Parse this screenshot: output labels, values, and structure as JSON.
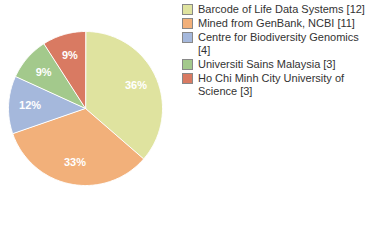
{
  "chart_data": {
    "type": "pie",
    "categories": [
      "Barcode of Life Data Systems [12]",
      "Mined from GenBank, NCBI [11]",
      "Centre for Biodiversity Genomics [4]",
      "Universiti Sains Malaysia [3]",
      "Ho Chi Minh City University of Science [3]"
    ],
    "values": [
      36,
      33,
      12,
      9,
      9
    ],
    "value_labels": [
      "36%",
      "33%",
      "12%",
      "9%",
      "9%"
    ],
    "colors": [
      "#dfe39f",
      "#f2b07a",
      "#a5b8dc",
      "#a3c98c",
      "#d97a62"
    ],
    "data_labels": true,
    "legend": "right"
  }
}
